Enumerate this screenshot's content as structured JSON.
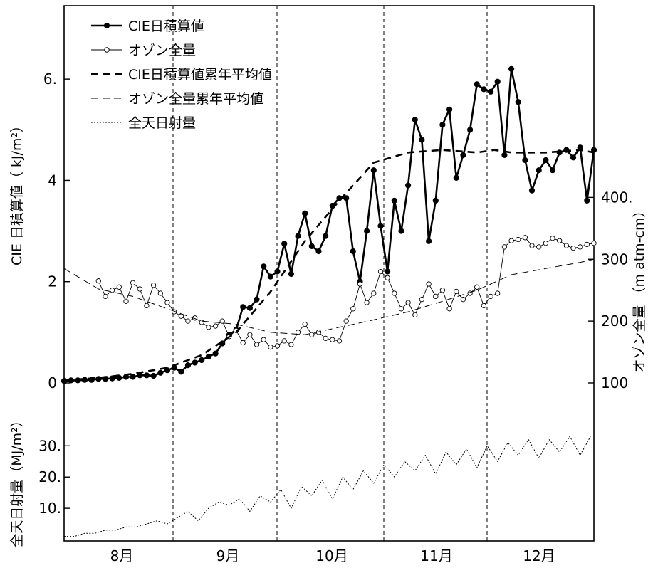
{
  "chart_data": {
    "type": "line",
    "x_axis": {
      "tick_labels": [
        "8月",
        "9月",
        "10月",
        "11月",
        "12月"
      ]
    },
    "month_dividers": [
      "8月/9月",
      "9月/10月",
      "10月/11月",
      "11月/12月"
    ],
    "grid": false,
    "legend": {
      "placement": "top-left",
      "entries": [
        {
          "name": "CIE日積算値",
          "style": "solid-filled-marker"
        },
        {
          "name": "オゾン全量",
          "style": "thin-open-marker"
        },
        {
          "name": "CIE日積算値累年平均値",
          "style": "thick-dashed"
        },
        {
          "name": "オゾン全量累年平均値",
          "style": "thin-dashed"
        },
        {
          "name": "全天日射量",
          "style": "dotted"
        }
      ]
    },
    "panels": {
      "cie": {
        "ylabel": "CIE 日積算値（ kJ/m²）",
        "ylim": [
          0,
          7.0
        ],
        "yticks": [
          0,
          2,
          4,
          6
        ],
        "ytick_labels": [
          "0",
          "2",
          "4",
          "6."
        ]
      },
      "ozone": {
        "ylabel": "オゾン全量 （m atm-cm）",
        "ylim": [
          100,
          420
        ],
        "yticks": [
          100,
          200,
          300,
          400
        ],
        "ytick_labels": [
          "100",
          "200",
          "300",
          "400."
        ]
      },
      "radiation": {
        "ylabel": "全天日射量（MJ/m²）",
        "ylim": [
          0,
          36
        ],
        "yticks": [
          10,
          20,
          30
        ],
        "ytick_labels": [
          "10.",
          "20.",
          "30."
        ]
      }
    },
    "series": [
      {
        "name": "CIE日積算値",
        "axis": "cie",
        "x": [
          0,
          2,
          4,
          6,
          8,
          10,
          12,
          14,
          16,
          18,
          20,
          22,
          24,
          26,
          28,
          30,
          32,
          34,
          36,
          38,
          40,
          42,
          44,
          46,
          48,
          50,
          52,
          54,
          56,
          58,
          60,
          62,
          64,
          66,
          68,
          70,
          72,
          74,
          76,
          78,
          80,
          82,
          84,
          86,
          88,
          90,
          92,
          94,
          96,
          98,
          100,
          102,
          104,
          106,
          108,
          110,
          112,
          114,
          116,
          118,
          120,
          122,
          124,
          126,
          128,
          130,
          132,
          134,
          136,
          138,
          140,
          142,
          144,
          146,
          148,
          150,
          152,
          154
        ],
        "values": [
          0.04,
          0.05,
          0.05,
          0.06,
          0.06,
          0.08,
          0.08,
          0.09,
          0.1,
          0.12,
          0.12,
          0.15,
          0.15,
          0.14,
          0.2,
          0.25,
          0.3,
          0.22,
          0.35,
          0.4,
          0.45,
          0.52,
          0.58,
          0.78,
          0.95,
          1.05,
          1.5,
          1.48,
          1.65,
          2.3,
          2.1,
          2.2,
          2.75,
          2.15,
          2.9,
          3.35,
          2.7,
          2.6,
          2.9,
          3.5,
          3.65,
          3.65,
          2.6,
          2.0,
          3.0,
          4.2,
          3.1,
          2.2,
          3.6,
          3.0,
          3.9,
          5.2,
          4.8,
          2.8,
          3.6,
          5.1,
          5.4,
          4.05,
          4.5,
          5.0,
          5.9,
          5.8,
          5.75,
          5.95,
          4.5,
          6.2,
          5.55,
          4.4,
          3.8,
          4.2,
          4.4,
          4.2,
          4.55,
          4.6,
          4.45,
          4.65,
          3.6,
          4.6
        ]
      },
      {
        "name": "オゾン全量",
        "axis": "ozone",
        "x": [
          10,
          12,
          14,
          16,
          18,
          20,
          22,
          24,
          26,
          28,
          30,
          32,
          34,
          36,
          38,
          40,
          42,
          44,
          46,
          48,
          50,
          52,
          54,
          56,
          58,
          60,
          62,
          64,
          66,
          68,
          70,
          72,
          74,
          76,
          78,
          80,
          82,
          84,
          86,
          88,
          90,
          92,
          94,
          96,
          98,
          100,
          102,
          104,
          106,
          108,
          110,
          112,
          114,
          116,
          118,
          120,
          122,
          124,
          126,
          128,
          130,
          132,
          134,
          136,
          138,
          140,
          142,
          144,
          146,
          148,
          150,
          152,
          154
        ],
        "values": [
          265,
          240,
          250,
          255,
          232,
          262,
          252,
          225,
          258,
          245,
          230,
          215,
          208,
          200,
          205,
          198,
          190,
          192,
          200,
          175,
          185,
          165,
          178,
          162,
          170,
          158,
          160,
          168,
          162,
          182,
          195,
          178,
          182,
          172,
          170,
          168,
          200,
          220,
          260,
          230,
          245,
          280,
          270,
          245,
          220,
          230,
          210,
          235,
          260,
          240,
          250,
          220,
          248,
          235,
          245,
          255,
          225,
          240,
          245,
          320,
          330,
          332,
          335,
          322,
          320,
          326,
          334,
          330,
          322,
          318,
          320,
          324,
          326
        ]
      },
      {
        "name": "CIE日積算値累年平均値",
        "axis": "cie",
        "x": [
          0,
          10,
          20,
          30,
          40,
          50,
          60,
          70,
          80,
          90,
          100,
          110,
          120,
          125,
          130,
          140,
          150,
          154
        ],
        "values": [
          0.05,
          0.1,
          0.18,
          0.3,
          0.55,
          1.0,
          1.8,
          2.8,
          3.6,
          4.35,
          4.55,
          4.6,
          4.55,
          4.6,
          4.55,
          4.55,
          4.6,
          4.55
        ]
      },
      {
        "name": "オゾン全量累年平均値",
        "axis": "ozone",
        "x": [
          0,
          10,
          20,
          30,
          40,
          50,
          60,
          70,
          80,
          90,
          100,
          110,
          120,
          130,
          140,
          150,
          154
        ],
        "values": [
          285,
          252,
          240,
          220,
          200,
          195,
          182,
          178,
          190,
          202,
          215,
          232,
          250,
          275,
          285,
          295,
          300
        ]
      },
      {
        "name": "全天日射量",
        "axis": "radiation",
        "x": [
          0,
          3,
          6,
          9,
          12,
          15,
          18,
          21,
          24,
          27,
          30,
          33,
          36,
          39,
          42,
          45,
          48,
          51,
          54,
          57,
          60,
          63,
          66,
          69,
          72,
          75,
          78,
          81,
          84,
          87,
          90,
          93,
          96,
          99,
          102,
          105,
          108,
          111,
          114,
          117,
          120,
          123,
          126,
          129,
          132,
          135,
          138,
          141,
          144,
          147,
          150,
          153
        ],
        "values": [
          1,
          1,
          2,
          2,
          3,
          3,
          4,
          4,
          5,
          6,
          5,
          7,
          9,
          6,
          10,
          12,
          11,
          13,
          9,
          14,
          12,
          16,
          10,
          17,
          14,
          19,
          13,
          20,
          16,
          22,
          18,
          24,
          20,
          25,
          22,
          27,
          21,
          28,
          24,
          29,
          23,
          30,
          25,
          31,
          27,
          32,
          26,
          32,
          28,
          33,
          27,
          33
        ]
      }
    ]
  }
}
